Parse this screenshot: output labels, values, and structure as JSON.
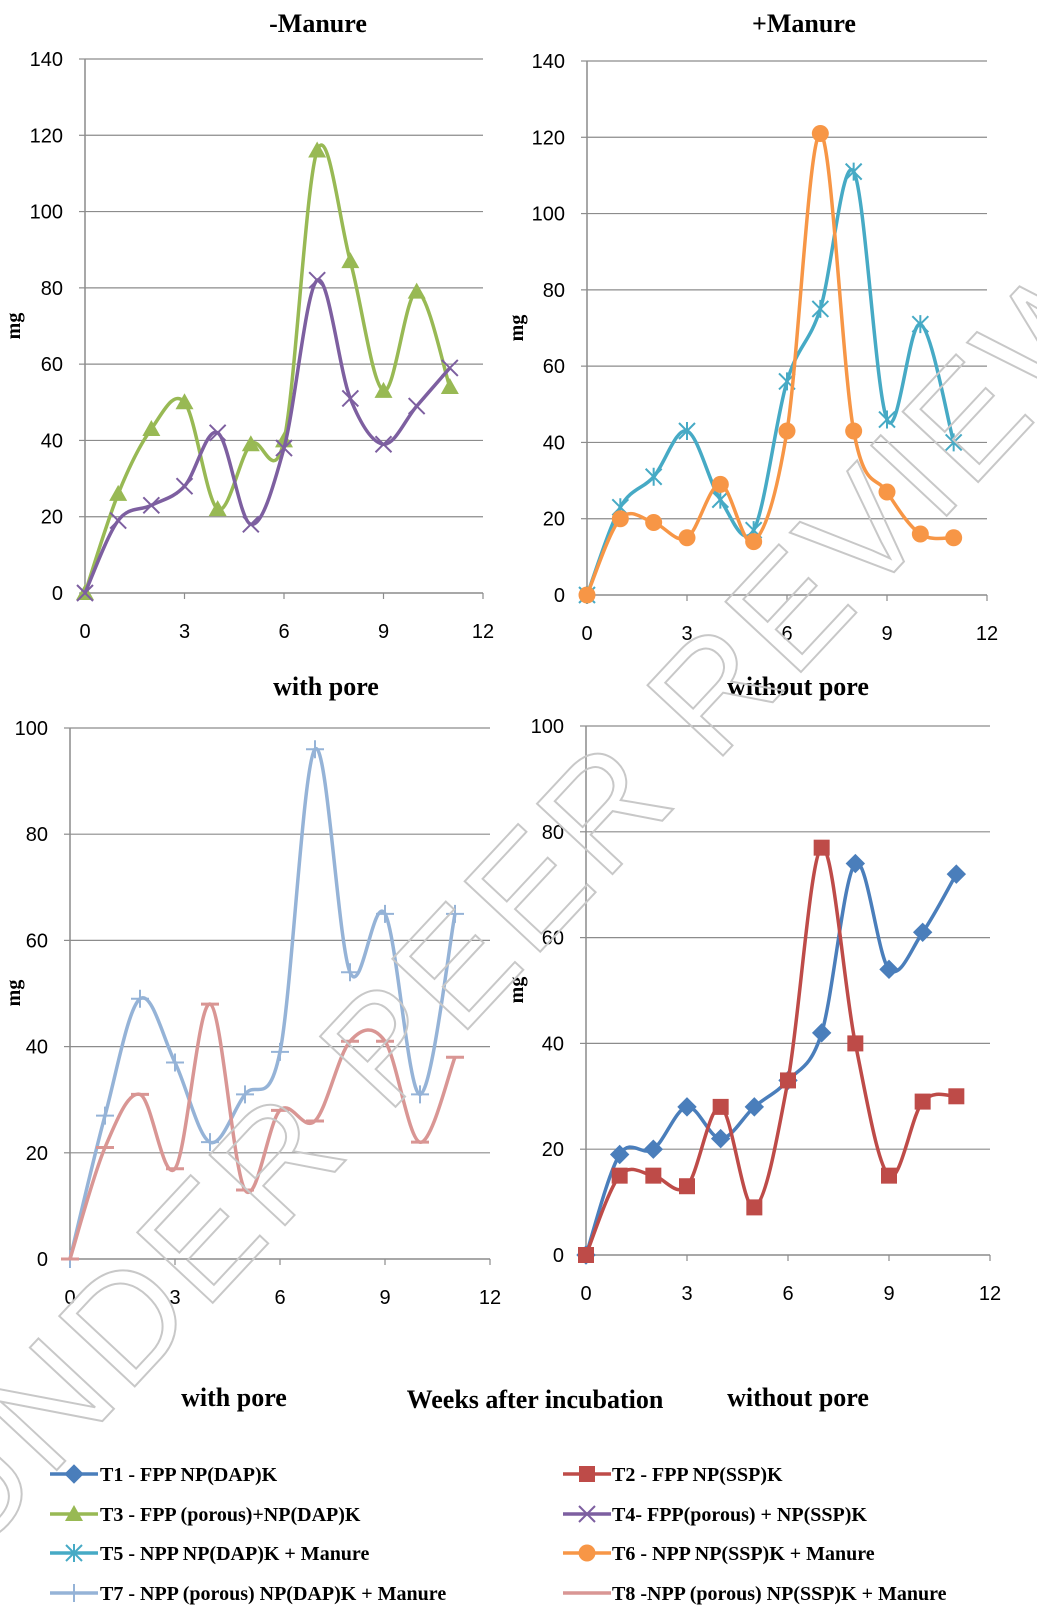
{
  "figure": {
    "top_titles": [
      "-Manure",
      "+Manure"
    ],
    "bottom_xlabels": [
      "with pore",
      "without pore"
    ],
    "shared_xlabel": "Weeks after incubation",
    "watermark": "UNDER PEER REVIEW"
  },
  "series_styles": {
    "T1": {
      "color": "#4a7ebb",
      "marker": "diamond",
      "label": "T1 - FPP  NP(DAP)K"
    },
    "T2": {
      "color": "#be4b48",
      "marker": "square",
      "label": "T2 - FPP NP(SSP)K"
    },
    "T3": {
      "color": "#98b954",
      "marker": "triangle",
      "label": "T3 - FPP (porous)+NP(DAP)K"
    },
    "T4": {
      "color": "#7d5fa0",
      "marker": "x",
      "label": "T4- FPP(porous) + NP(SSP)K"
    },
    "T5": {
      "color": "#46aac5",
      "marker": "star",
      "label": "T5 - NPP NP(DAP)K  + Manure"
    },
    "T6": {
      "color": "#f79646",
      "marker": "circle",
      "label": "T6 - NPP NP(SSP)K  + Manure"
    },
    "T7": {
      "color": "#95b3d7",
      "marker": "plus",
      "label": "T7 - NPP  (porous) NP(DAP)K  + Manure"
    },
    "T8": {
      "color": "#d99694",
      "marker": "dash",
      "label": "T8 -NPP  (porous) NP(SSP)K  + Manure"
    }
  },
  "legend_order": [
    "T1",
    "T2",
    "T3",
    "T4",
    "T5",
    "T6",
    "T7",
    "T8"
  ],
  "chart_data": [
    {
      "type": "line",
      "title": "-Manure",
      "xlabel": "with pore",
      "ylabel": "mg",
      "xlim": [
        0,
        12
      ],
      "ylim": [
        0,
        140
      ],
      "xticks": [
        0,
        3,
        6,
        9,
        12
      ],
      "yticks": [
        0,
        20,
        40,
        60,
        80,
        100,
        120,
        140
      ],
      "grid": true,
      "series": [
        {
          "key": "T3",
          "x": [
            0,
            1,
            2,
            3,
            4,
            5,
            6,
            7,
            8,
            9,
            10,
            11
          ],
          "values": [
            0,
            26,
            43,
            50,
            22,
            39,
            40,
            116,
            87,
            53,
            79,
            54
          ]
        },
        {
          "key": "T4",
          "x": [
            0,
            1,
            2,
            3,
            4,
            5,
            6,
            7,
            8,
            9,
            10,
            11
          ],
          "values": [
            0,
            19,
            23,
            28,
            42,
            18,
            38,
            82,
            51,
            39,
            49,
            59
          ]
        }
      ]
    },
    {
      "type": "line",
      "title": "+Manure",
      "xlabel": "without pore",
      "ylabel": "mg",
      "xlim": [
        0,
        12
      ],
      "ylim": [
        0,
        140
      ],
      "xticks": [
        0,
        3,
        6,
        9,
        12
      ],
      "yticks": [
        0,
        20,
        40,
        60,
        80,
        100,
        120,
        140
      ],
      "grid": true,
      "series": [
        {
          "key": "T5",
          "x": [
            0,
            1,
            2,
            3,
            4,
            5,
            6,
            7,
            8,
            9,
            10,
            11
          ],
          "values": [
            0,
            23,
            31,
            43,
            25,
            17,
            56,
            75,
            111,
            46,
            71,
            40
          ]
        },
        {
          "key": "T6",
          "x": [
            0,
            1,
            2,
            3,
            4,
            5,
            6,
            7,
            8,
            9,
            10,
            11
          ],
          "values": [
            0,
            20,
            19,
            15,
            29,
            14,
            43,
            121,
            43,
            27,
            16,
            15
          ]
        }
      ]
    },
    {
      "type": "line",
      "title": "",
      "xlabel": "with pore",
      "ylabel": "mg",
      "xlim": [
        0,
        12
      ],
      "ylim": [
        0,
        100
      ],
      "xticks": [
        0,
        3,
        6,
        9,
        12
      ],
      "yticks": [
        0,
        20,
        40,
        60,
        80,
        100
      ],
      "grid": true,
      "series": [
        {
          "key": "T7",
          "x": [
            0,
            1,
            2,
            3,
            4,
            5,
            6,
            7,
            8,
            9,
            10,
            11
          ],
          "values": [
            0,
            27,
            49,
            37,
            22,
            31,
            39,
            96,
            54,
            65,
            31,
            65
          ]
        },
        {
          "key": "T8",
          "x": [
            0,
            1,
            2,
            3,
            4,
            5,
            6,
            7,
            8,
            9,
            10,
            11
          ],
          "values": [
            0,
            21,
            31,
            17,
            48,
            13,
            28,
            26,
            41,
            41,
            22,
            38
          ]
        }
      ]
    },
    {
      "type": "line",
      "title": "",
      "xlabel": "without pore",
      "ylabel": "mg",
      "xlim": [
        0,
        12
      ],
      "ylim": [
        0,
        100
      ],
      "xticks": [
        0,
        3,
        6,
        9,
        12
      ],
      "yticks": [
        0,
        20,
        40,
        60,
        80,
        100
      ],
      "grid": true,
      "series": [
        {
          "key": "T1",
          "x": [
            0,
            1,
            2,
            3,
            4,
            5,
            6,
            7,
            8,
            9,
            10,
            11
          ],
          "values": [
            0,
            19,
            20,
            28,
            22,
            28,
            33,
            42,
            74,
            54,
            61,
            72
          ]
        },
        {
          "key": "T2",
          "x": [
            0,
            1,
            2,
            3,
            4,
            5,
            6,
            7,
            8,
            9,
            10,
            11
          ],
          "values": [
            0,
            15,
            15,
            13,
            28,
            9,
            33,
            77,
            40,
            15,
            29,
            30
          ]
        }
      ]
    }
  ]
}
